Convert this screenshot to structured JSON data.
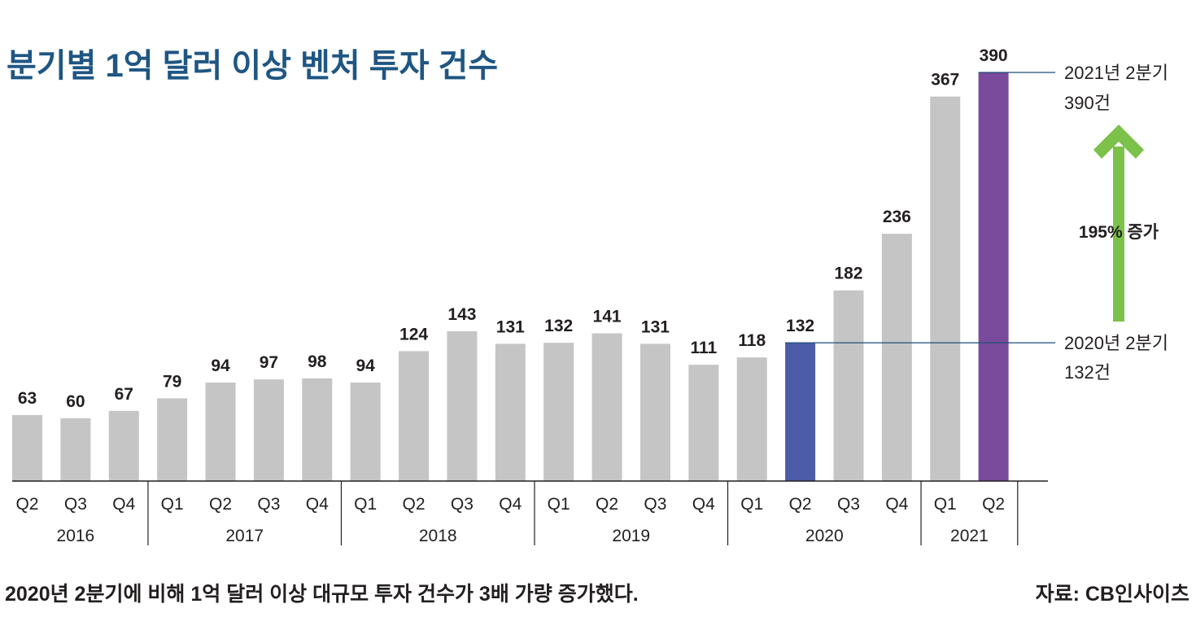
{
  "chart_data": {
    "type": "bar",
    "title": "분기별 1억 달러 이상 벤처 투자 건수",
    "categories": [
      "Q2",
      "Q3",
      "Q4",
      "Q1",
      "Q2",
      "Q3",
      "Q4",
      "Q1",
      "Q2",
      "Q3",
      "Q4",
      "Q1",
      "Q2",
      "Q3",
      "Q4",
      "Q1",
      "Q2",
      "Q3",
      "Q4",
      "Q1",
      "Q2"
    ],
    "years": [
      {
        "label": "2016",
        "count": 3
      },
      {
        "label": "2017",
        "count": 4
      },
      {
        "label": "2018",
        "count": 4
      },
      {
        "label": "2019",
        "count": 4
      },
      {
        "label": "2020",
        "count": 4
      },
      {
        "label": "2021",
        "count": 2
      }
    ],
    "values": [
      63,
      60,
      67,
      79,
      94,
      97,
      98,
      94,
      124,
      143,
      131,
      132,
      141,
      131,
      111,
      118,
      132,
      182,
      236,
      367,
      390
    ],
    "ylim": [
      0,
      390
    ],
    "grid": false,
    "colors": {
      "default": "#c4c5c4",
      "highlight_2020_q2": "#4d5ca9",
      "highlight_2021_q2": "#7a4b9c",
      "arrow": "#7bc14a",
      "title": "#1f5683"
    },
    "highlights": [
      16,
      20
    ],
    "annotations": {
      "top_line1": "2021년 2분기",
      "top_line2": "390건",
      "bottom_line1": "2020년 2분기",
      "bottom_line2": "132건",
      "increase": "195% 증가"
    }
  },
  "footer": {
    "caption": "2020년 2분기에 비해 1억 달러 이상 대규모 투자 건수가 3배 가량 증가했다.",
    "source": "자료: CB인사이츠"
  }
}
